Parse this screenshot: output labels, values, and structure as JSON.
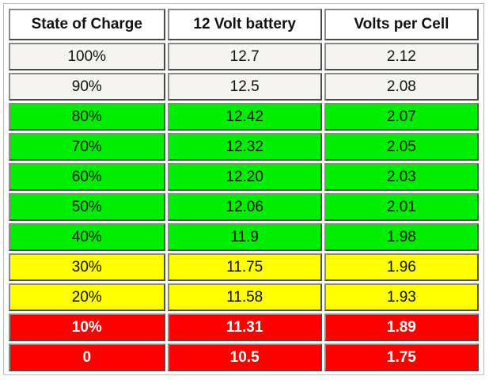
{
  "table": {
    "headers": [
      "State of Charge",
      "12 Volt battery",
      "Volts per Cell"
    ],
    "rows": [
      {
        "soc": "100%",
        "volts": "12.7",
        "cell": "2.12",
        "color": "#f6f4f0"
      },
      {
        "soc": "90%",
        "volts": "12.5",
        "cell": "2.08",
        "color": "#f6f4f0"
      },
      {
        "soc": "80%",
        "volts": "12.42",
        "cell": "2.07",
        "color": "#00ee00"
      },
      {
        "soc": "70%",
        "volts": "12.32",
        "cell": "2.05",
        "color": "#00ee00"
      },
      {
        "soc": "60%",
        "volts": "12.20",
        "cell": "2.03",
        "color": "#00ee00"
      },
      {
        "soc": "50%",
        "volts": "12.06",
        "cell": "2.01",
        "color": "#00ee00"
      },
      {
        "soc": "40%",
        "volts": "11.9",
        "cell": "1.98",
        "color": "#00ee00"
      },
      {
        "soc": "30%",
        "volts": "11.75",
        "cell": "1.96",
        "color": "#ffff00"
      },
      {
        "soc": "20%",
        "volts": "11.58",
        "cell": "1.93",
        "color": "#ffff00"
      },
      {
        "soc": "10%",
        "volts": "11.31",
        "cell": "1.89",
        "color": "#ff0000"
      },
      {
        "soc": "0",
        "volts": "10.5",
        "cell": "1.75",
        "color": "#ff0000"
      }
    ]
  }
}
